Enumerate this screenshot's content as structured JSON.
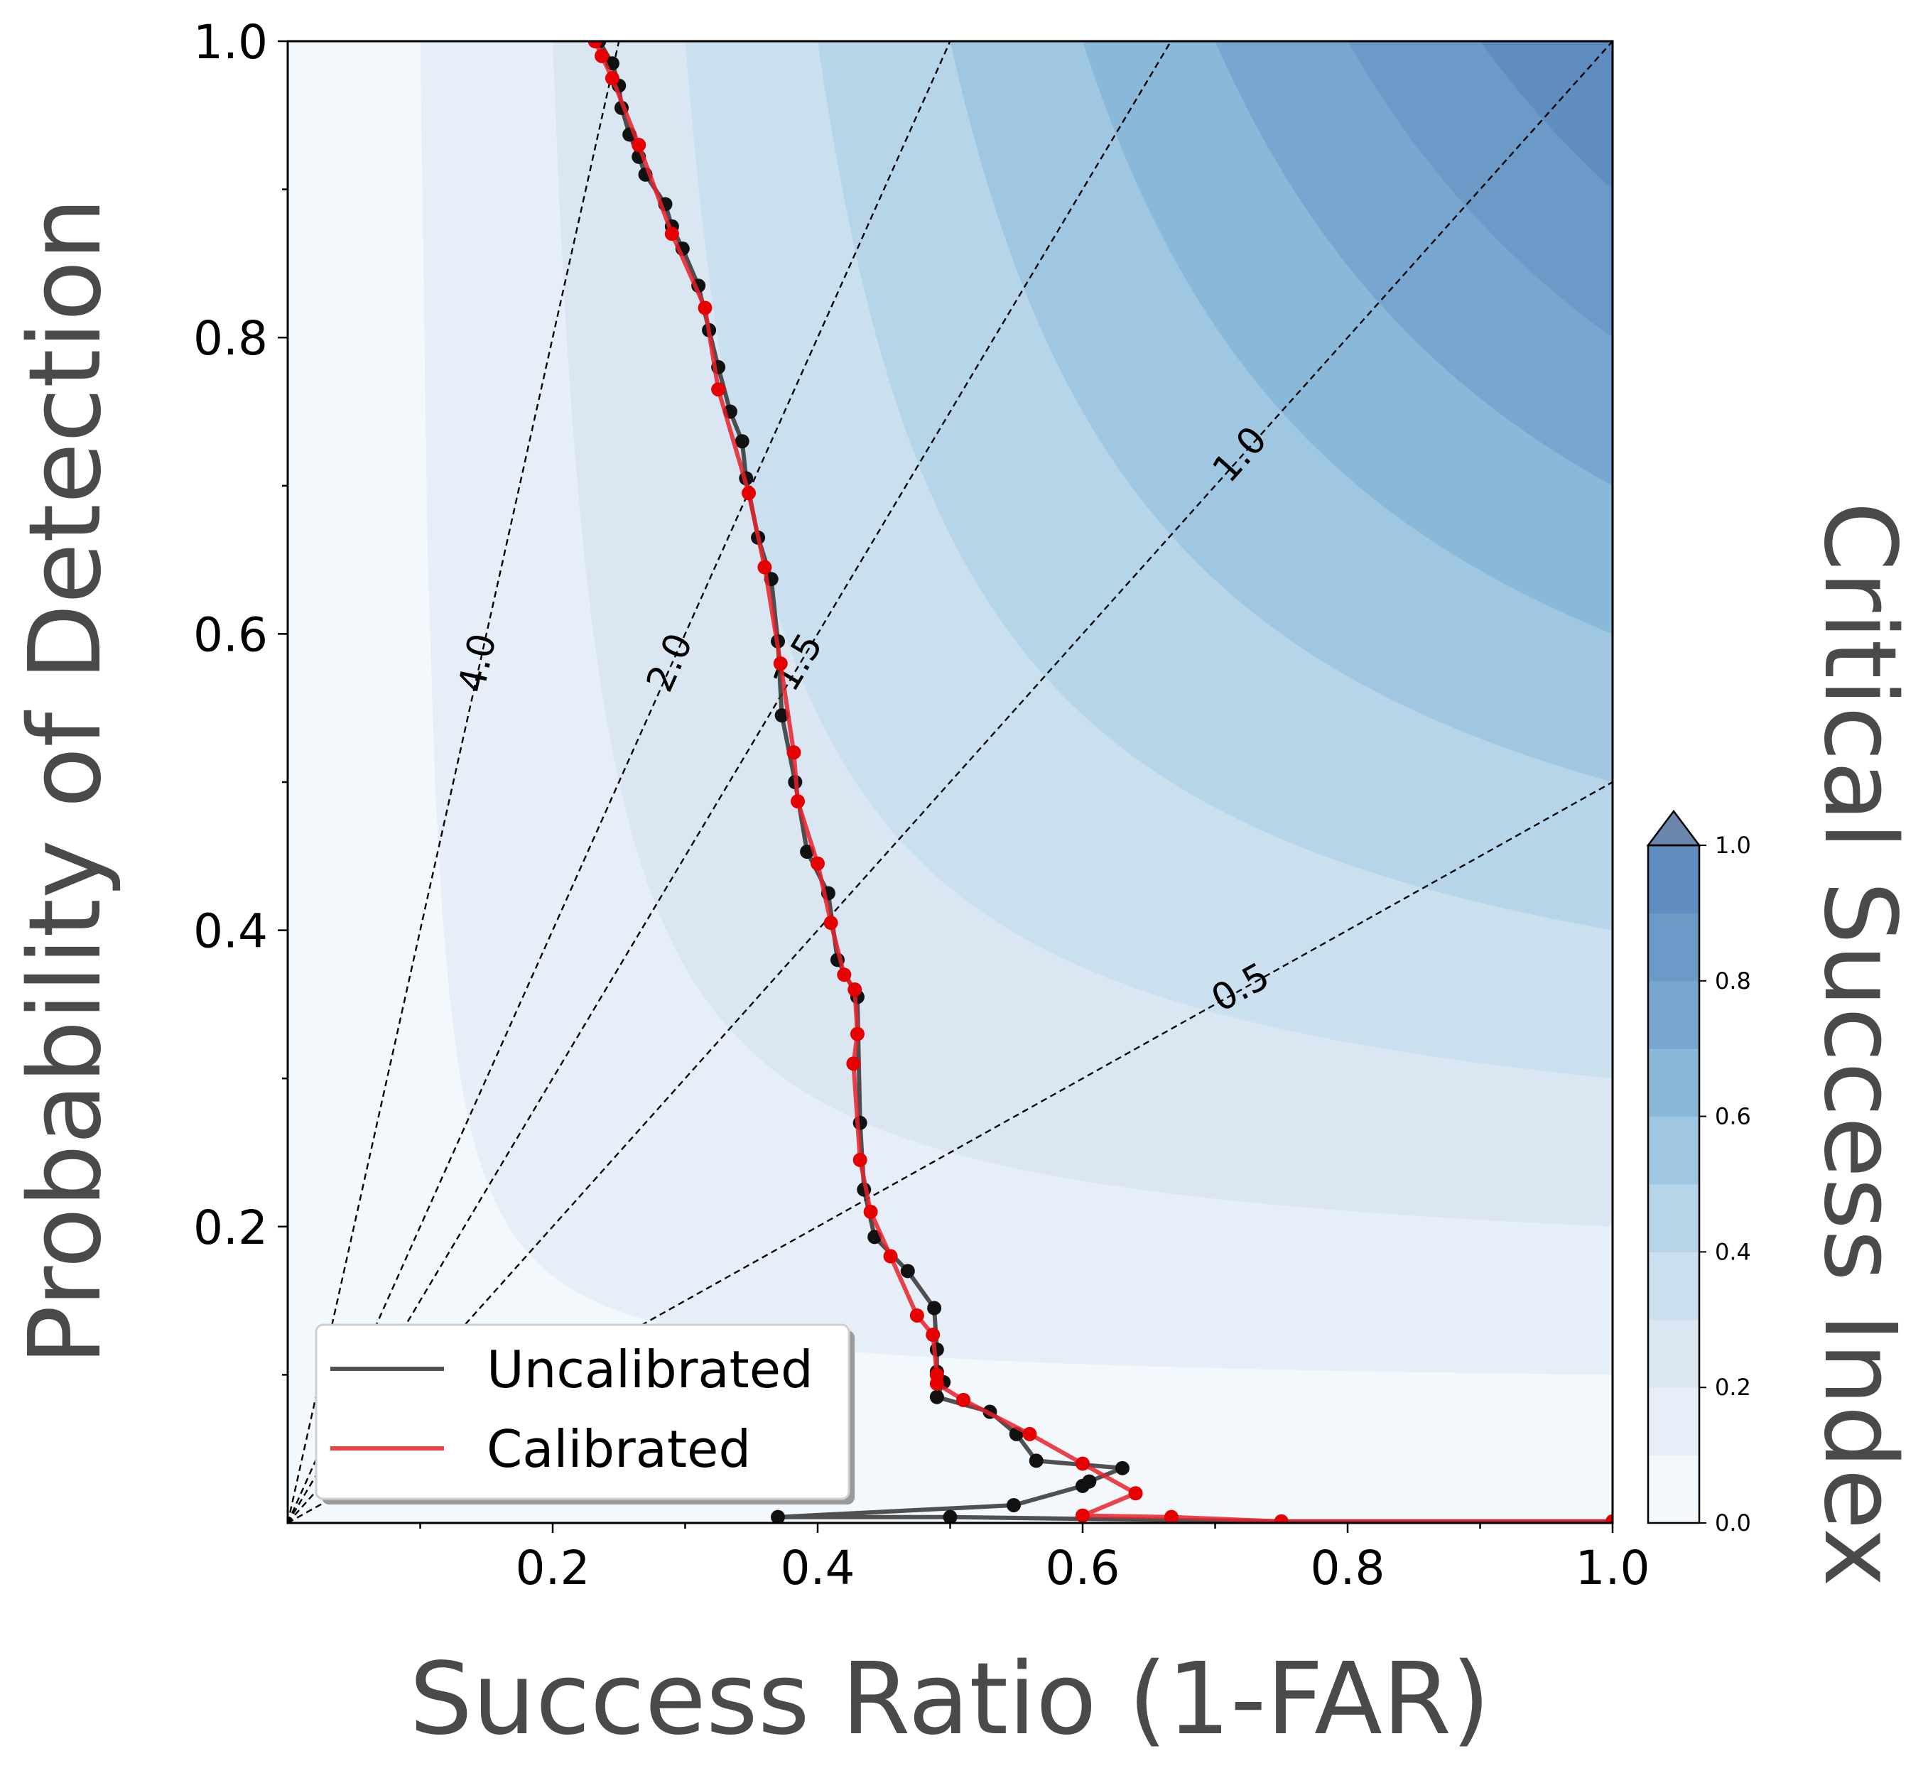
{
  "chart_data": {
    "type": "line",
    "xlabel": "Success Ratio (1-FAR)",
    "ylabel": "Probability of Detection",
    "colorbar_label": "Critical Success Index",
    "xlim": [
      0.0,
      1.0
    ],
    "ylim": [
      0.0,
      1.0
    ],
    "x_ticks": [
      "0.2",
      "0.4",
      "0.6",
      "0.8",
      "1.0"
    ],
    "y_ticks": [
      "0.2",
      "0.4",
      "0.6",
      "0.8",
      "1.0"
    ],
    "colorbar_ticks": [
      "0.0",
      "0.2",
      "0.4",
      "0.6",
      "0.8",
      "1.0"
    ],
    "csi_levels": [
      0.0,
      0.1,
      0.2,
      0.3,
      0.4,
      0.5,
      0.6,
      0.7,
      0.8,
      0.9,
      1.0
    ],
    "csi_colors": [
      "#f3f8fc",
      "#e6eff8",
      "#dae7f3",
      "#cbe0ee",
      "#b6d5e9",
      "#9fc7e2",
      "#89b8d9",
      "#77a6d0",
      "#6b9ac7",
      "#5f8dbf",
      "#6c87ae"
    ],
    "bias_lines": [
      {
        "value": 0.5,
        "label": "0.5"
      },
      {
        "value": 1.0,
        "label": "1.0"
      },
      {
        "value": 1.5,
        "label": "1.5"
      },
      {
        "value": 2.0,
        "label": "2.0"
      },
      {
        "value": 4.0,
        "label": "4.0"
      }
    ],
    "legend": {
      "position": "lower-left",
      "entries": [
        "Uncalibrated",
        "Calibrated"
      ]
    },
    "series": [
      {
        "name": "Uncalibrated",
        "color": "#333333",
        "marker_color": "#111111",
        "points": [
          [
            0.235,
            1.0
          ],
          [
            0.245,
            0.985
          ],
          [
            0.25,
            0.97
          ],
          [
            0.252,
            0.955
          ],
          [
            0.258,
            0.937
          ],
          [
            0.265,
            0.922
          ],
          [
            0.27,
            0.91
          ],
          [
            0.285,
            0.89
          ],
          [
            0.29,
            0.875
          ],
          [
            0.298,
            0.86
          ],
          [
            0.31,
            0.835
          ],
          [
            0.318,
            0.805
          ],
          [
            0.325,
            0.78
          ],
          [
            0.334,
            0.75
          ],
          [
            0.343,
            0.73
          ],
          [
            0.346,
            0.705
          ],
          [
            0.355,
            0.665
          ],
          [
            0.365,
            0.637
          ],
          [
            0.37,
            0.595
          ],
          [
            0.373,
            0.545
          ],
          [
            0.383,
            0.5
          ],
          [
            0.392,
            0.453
          ],
          [
            0.408,
            0.425
          ],
          [
            0.415,
            0.38
          ],
          [
            0.43,
            0.355
          ],
          [
            0.432,
            0.27
          ],
          [
            0.435,
            0.225
          ],
          [
            0.443,
            0.193
          ],
          [
            0.468,
            0.17
          ],
          [
            0.488,
            0.145
          ],
          [
            0.49,
            0.117
          ],
          [
            0.49,
            0.102
          ],
          [
            0.495,
            0.095
          ],
          [
            0.49,
            0.085
          ],
          [
            0.53,
            0.075
          ],
          [
            0.55,
            0.06
          ],
          [
            0.565,
            0.042
          ],
          [
            0.63,
            0.037
          ],
          [
            0.605,
            0.028
          ],
          [
            0.6,
            0.025
          ],
          [
            0.548,
            0.012
          ],
          [
            0.37,
            0.004
          ],
          [
            0.5,
            0.004
          ],
          [
            0.75,
            0.001
          ],
          [
            1.0,
            0.001
          ]
        ]
      },
      {
        "name": "Calibrated",
        "color": "#e8212a",
        "marker_color": "#e60000",
        "points": [
          [
            0.232,
            1.0
          ],
          [
            0.237,
            0.99
          ],
          [
            0.245,
            0.975
          ],
          [
            0.265,
            0.93
          ],
          [
            0.29,
            0.87
          ],
          [
            0.315,
            0.82
          ],
          [
            0.325,
            0.765
          ],
          [
            0.348,
            0.695
          ],
          [
            0.36,
            0.645
          ],
          [
            0.372,
            0.58
          ],
          [
            0.382,
            0.52
          ],
          [
            0.385,
            0.487
          ],
          [
            0.4,
            0.445
          ],
          [
            0.41,
            0.405
          ],
          [
            0.42,
            0.37
          ],
          [
            0.428,
            0.36
          ],
          [
            0.43,
            0.33
          ],
          [
            0.427,
            0.31
          ],
          [
            0.432,
            0.245
          ],
          [
            0.44,
            0.21
          ],
          [
            0.455,
            0.18
          ],
          [
            0.475,
            0.14
          ],
          [
            0.487,
            0.127
          ],
          [
            0.49,
            0.1
          ],
          [
            0.49,
            0.094
          ],
          [
            0.51,
            0.083
          ],
          [
            0.56,
            0.06
          ],
          [
            0.6,
            0.04
          ],
          [
            0.64,
            0.02
          ],
          [
            0.6,
            0.005
          ],
          [
            0.667,
            0.004
          ],
          [
            0.75,
            0.001
          ],
          [
            1.0,
            0.001
          ]
        ]
      }
    ]
  }
}
